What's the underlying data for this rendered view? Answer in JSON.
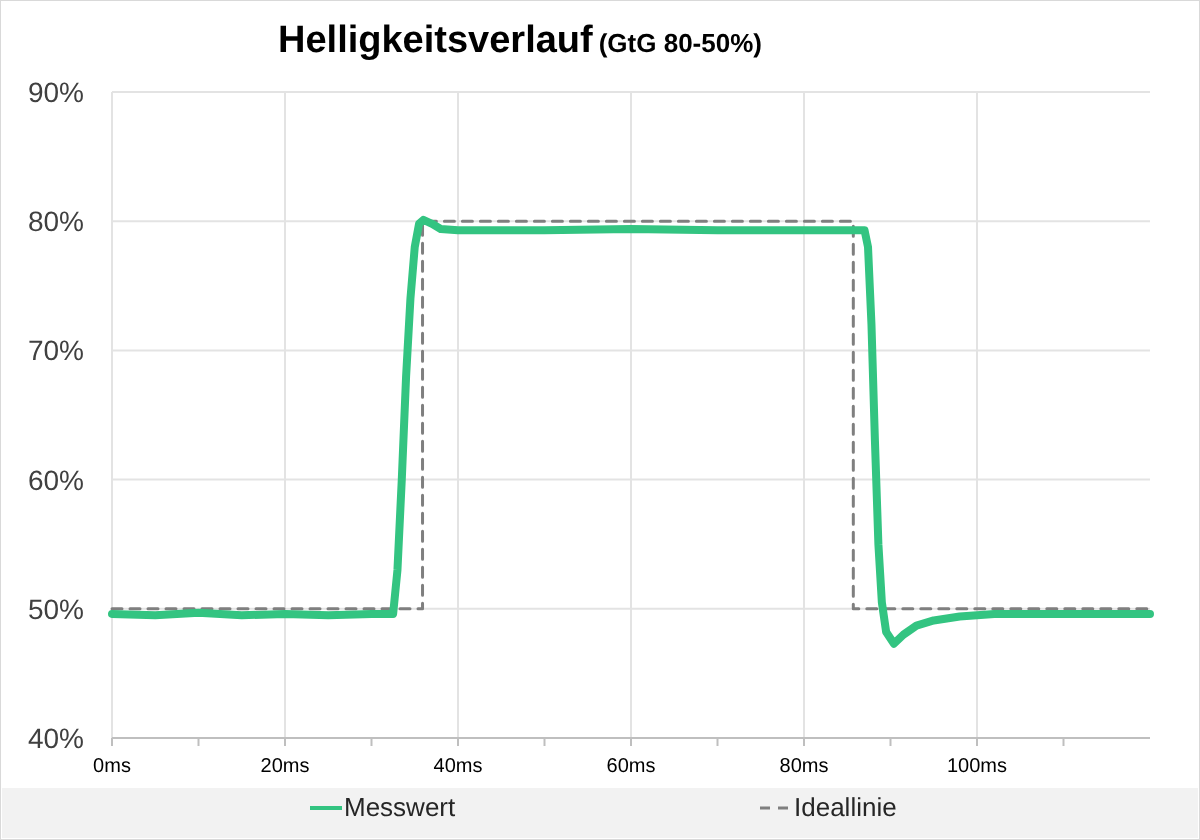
{
  "chart_data": {
    "type": "line",
    "title": "Helligkeitsverlauf",
    "subtitle": "(GtG 80-50%)",
    "xlim": [
      0,
      120
    ],
    "xticks": [
      {
        "value": 0,
        "label": "0ms"
      },
      {
        "value": 10,
        "label": null
      },
      {
        "value": 20,
        "label": "20ms"
      },
      {
        "value": 30,
        "label": null
      },
      {
        "value": 40,
        "label": "40ms"
      },
      {
        "value": 50,
        "label": null
      },
      {
        "value": 60,
        "label": "60ms"
      },
      {
        "value": 70,
        "label": null
      },
      {
        "value": 80,
        "label": "80ms"
      },
      {
        "value": 90,
        "label": null
      },
      {
        "value": 100,
        "label": "100ms"
      },
      {
        "value": 110,
        "label": null
      }
    ],
    "ylim": [
      40,
      90
    ],
    "yticks": [
      {
        "value": 40,
        "label": "40%"
      },
      {
        "value": 50,
        "label": "50%"
      },
      {
        "value": 60,
        "label": "60%"
      },
      {
        "value": 70,
        "label": "70%"
      },
      {
        "value": 80,
        "label": "80%"
      },
      {
        "value": 90,
        "label": "90%"
      }
    ],
    "grid": true,
    "legend": "bottom",
    "series": [
      {
        "name": "Messwert",
        "color": "#33c481",
        "line_style": "solid",
        "x": [
          0,
          5,
          10,
          15,
          20,
          25,
          30,
          32.5,
          33,
          33.5,
          34,
          34.5,
          35,
          35.5,
          36,
          37,
          38,
          40,
          50,
          60,
          70,
          80,
          87,
          87.4,
          87.8,
          88.2,
          88.6,
          89,
          89.5,
          90.4,
          91.5,
          93,
          95,
          98,
          102,
          110,
          120
        ],
        "values": [
          49.6,
          49.5,
          49.7,
          49.5,
          49.6,
          49.5,
          49.6,
          49.6,
          53,
          60,
          68,
          74,
          78,
          79.8,
          80.1,
          79.8,
          79.4,
          79.3,
          79.3,
          79.4,
          79.3,
          79.3,
          79.3,
          78,
          72,
          63,
          55,
          50.5,
          48.2,
          47.3,
          48,
          48.7,
          49.1,
          49.4,
          49.6,
          49.6,
          49.6
        ]
      },
      {
        "name": "Ideallinie",
        "color": "#7f7f7f",
        "line_style": "dashed",
        "x": [
          0,
          35.9,
          35.9,
          85.7,
          85.7,
          120
        ],
        "values": [
          50,
          50,
          80,
          80,
          50,
          50
        ]
      }
    ]
  }
}
